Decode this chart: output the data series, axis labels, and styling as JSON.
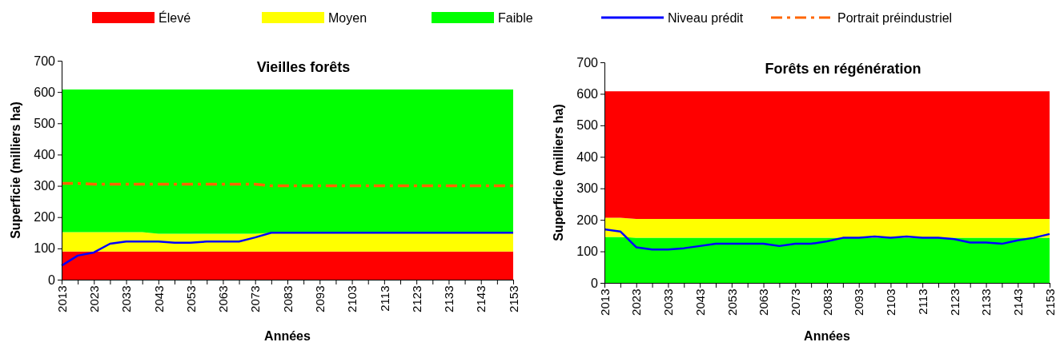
{
  "chart_data": [
    {
      "type": "area",
      "title": "Vieilles forêts",
      "xlabel": "Années",
      "ylabel": "Superficie (milliers ha)",
      "stacked": true,
      "legend": "top",
      "grid": false,
      "x": [
        2013,
        2018,
        2023,
        2028,
        2033,
        2038,
        2043,
        2048,
        2053,
        2058,
        2063,
        2068,
        2073,
        2078,
        2083,
        2088,
        2093,
        2098,
        2103,
        2108,
        2113,
        2118,
        2123,
        2128,
        2133,
        2138,
        2143,
        2148,
        2153
      ],
      "xlim": [
        2013,
        2153
      ],
      "xticks": [
        2013,
        {
          "value": 2018,
          "label": null
        },
        2023,
        {
          "value": 2028,
          "label": null
        },
        2033,
        {
          "value": 2038,
          "label": null
        },
        2043,
        {
          "value": 2048,
          "label": null
        },
        2053,
        {
          "value": 2058,
          "label": null
        },
        2063,
        {
          "value": 2068,
          "label": null
        },
        2073,
        {
          "value": 2078,
          "label": null
        },
        2083,
        {
          "value": 2088,
          "label": null
        },
        2093,
        {
          "value": 2098,
          "label": null
        },
        2103,
        {
          "value": 2108,
          "label": null
        },
        2113,
        {
          "value": 2118,
          "label": null
        },
        2123,
        {
          "value": 2128,
          "label": null
        },
        2133,
        {
          "value": 2138,
          "label": null
        },
        2143,
        {
          "value": 2148,
          "label": null
        },
        2153
      ],
      "ylim": [
        0,
        700
      ],
      "yticks": [
        0,
        100,
        200,
        300,
        400,
        500,
        600,
        700
      ],
      "series": [
        {
          "name": "Élevé",
          "color": "#ff0000",
          "values": [
            90,
            90,
            90,
            90,
            90,
            90,
            90,
            90,
            90,
            90,
            90,
            90,
            90,
            90,
            90,
            90,
            90,
            90,
            90,
            90,
            90,
            90,
            90,
            90,
            90,
            90,
            90,
            90,
            90
          ]
        },
        {
          "name": "Moyen",
          "color": "#ffff00",
          "values": [
            62,
            62,
            62,
            62,
            62,
            62,
            57,
            57,
            57,
            57,
            57,
            57,
            57,
            60,
            60,
            60,
            60,
            60,
            60,
            60,
            60,
            60,
            60,
            60,
            60,
            60,
            60,
            60,
            60
          ]
        },
        {
          "name": "Faible",
          "color": "#00ff00",
          "values": [
            456,
            456,
            456,
            456,
            456,
            456,
            461,
            461,
            461,
            461,
            461,
            461,
            461,
            458,
            458,
            458,
            458,
            458,
            458,
            458,
            458,
            458,
            458,
            458,
            458,
            458,
            458,
            458,
            458
          ]
        },
        {
          "name": "Niveau prédit",
          "type": "line",
          "color": "#0000ff",
          "line_style": "solid",
          "values": [
            45,
            77,
            87,
            115,
            122,
            122,
            122,
            118,
            118,
            122,
            122,
            122,
            135,
            150,
            150,
            150,
            150,
            150,
            150,
            150,
            150,
            150,
            150,
            150,
            150,
            150,
            150,
            150,
            150
          ]
        },
        {
          "name": "Portrait préindustriel",
          "type": "line",
          "color": "#ff6600",
          "line_style": "dashed",
          "values": [
            308,
            308,
            305,
            305,
            305,
            305,
            305,
            305,
            305,
            305,
            305,
            305,
            305,
            300,
            300,
            300,
            300,
            300,
            300,
            300,
            300,
            300,
            300,
            300,
            300,
            300,
            300,
            300,
            300
          ]
        }
      ]
    },
    {
      "type": "area",
      "title": "Forêts en régénération",
      "xlabel": "Années",
      "ylabel": "Superficie (milliers ha)",
      "stacked": true,
      "grid": false,
      "x": [
        2013,
        2018,
        2023,
        2028,
        2033,
        2038,
        2043,
        2048,
        2053,
        2058,
        2063,
        2068,
        2073,
        2078,
        2083,
        2088,
        2093,
        2098,
        2103,
        2108,
        2113,
        2118,
        2123,
        2128,
        2133,
        2138,
        2143,
        2148,
        2153
      ],
      "xlim": [
        2013,
        2153
      ],
      "xticks": [
        2013,
        {
          "value": 2018,
          "label": null
        },
        2023,
        {
          "value": 2028,
          "label": null
        },
        2033,
        {
          "value": 2038,
          "label": null
        },
        2043,
        {
          "value": 2048,
          "label": null
        },
        2053,
        {
          "value": 2058,
          "label": null
        },
        2063,
        {
          "value": 2068,
          "label": null
        },
        2073,
        {
          "value": 2078,
          "label": null
        },
        2083,
        {
          "value": 2088,
          "label": null
        },
        2093,
        {
          "value": 2098,
          "label": null
        },
        2103,
        {
          "value": 2108,
          "label": null
        },
        2113,
        {
          "value": 2118,
          "label": null
        },
        2123,
        {
          "value": 2128,
          "label": null
        },
        2133,
        {
          "value": 2138,
          "label": null
        },
        2143,
        {
          "value": 2148,
          "label": null
        },
        2153
      ],
      "ylim": [
        0,
        700
      ],
      "yticks": [
        0,
        100,
        200,
        300,
        400,
        500,
        600,
        700
      ],
      "series": [
        {
          "color": "#00ff00",
          "values": [
            146,
            146,
            143,
            143,
            143,
            143,
            143,
            143,
            143,
            143,
            143,
            143,
            143,
            143,
            143,
            143,
            143,
            143,
            143,
            143,
            143,
            143,
            143,
            143,
            143,
            143,
            143,
            143,
            143
          ]
        },
        {
          "color": "#ffff00",
          "values": [
            61,
            61,
            60,
            60,
            60,
            60,
            60,
            60,
            60,
            60,
            60,
            60,
            60,
            60,
            60,
            60,
            60,
            60,
            60,
            60,
            60,
            60,
            60,
            60,
            60,
            60,
            60,
            60,
            60
          ]
        },
        {
          "color": "#ff0000",
          "values": [
            401,
            401,
            405,
            405,
            405,
            405,
            405,
            405,
            405,
            405,
            405,
            405,
            405,
            405,
            405,
            405,
            405,
            405,
            405,
            405,
            405,
            405,
            405,
            405,
            405,
            405,
            405,
            405,
            405
          ]
        },
        {
          "type": "line",
          "color": "#0000ff",
          "line_style": "solid",
          "values": [
            170,
            163,
            113,
            106,
            106,
            110,
            117,
            124,
            124,
            124,
            124,
            117,
            124,
            124,
            132,
            143,
            143,
            147,
            143,
            147,
            143,
            143,
            139,
            128,
            128,
            124,
            135,
            143,
            155
          ]
        }
      ]
    }
  ]
}
